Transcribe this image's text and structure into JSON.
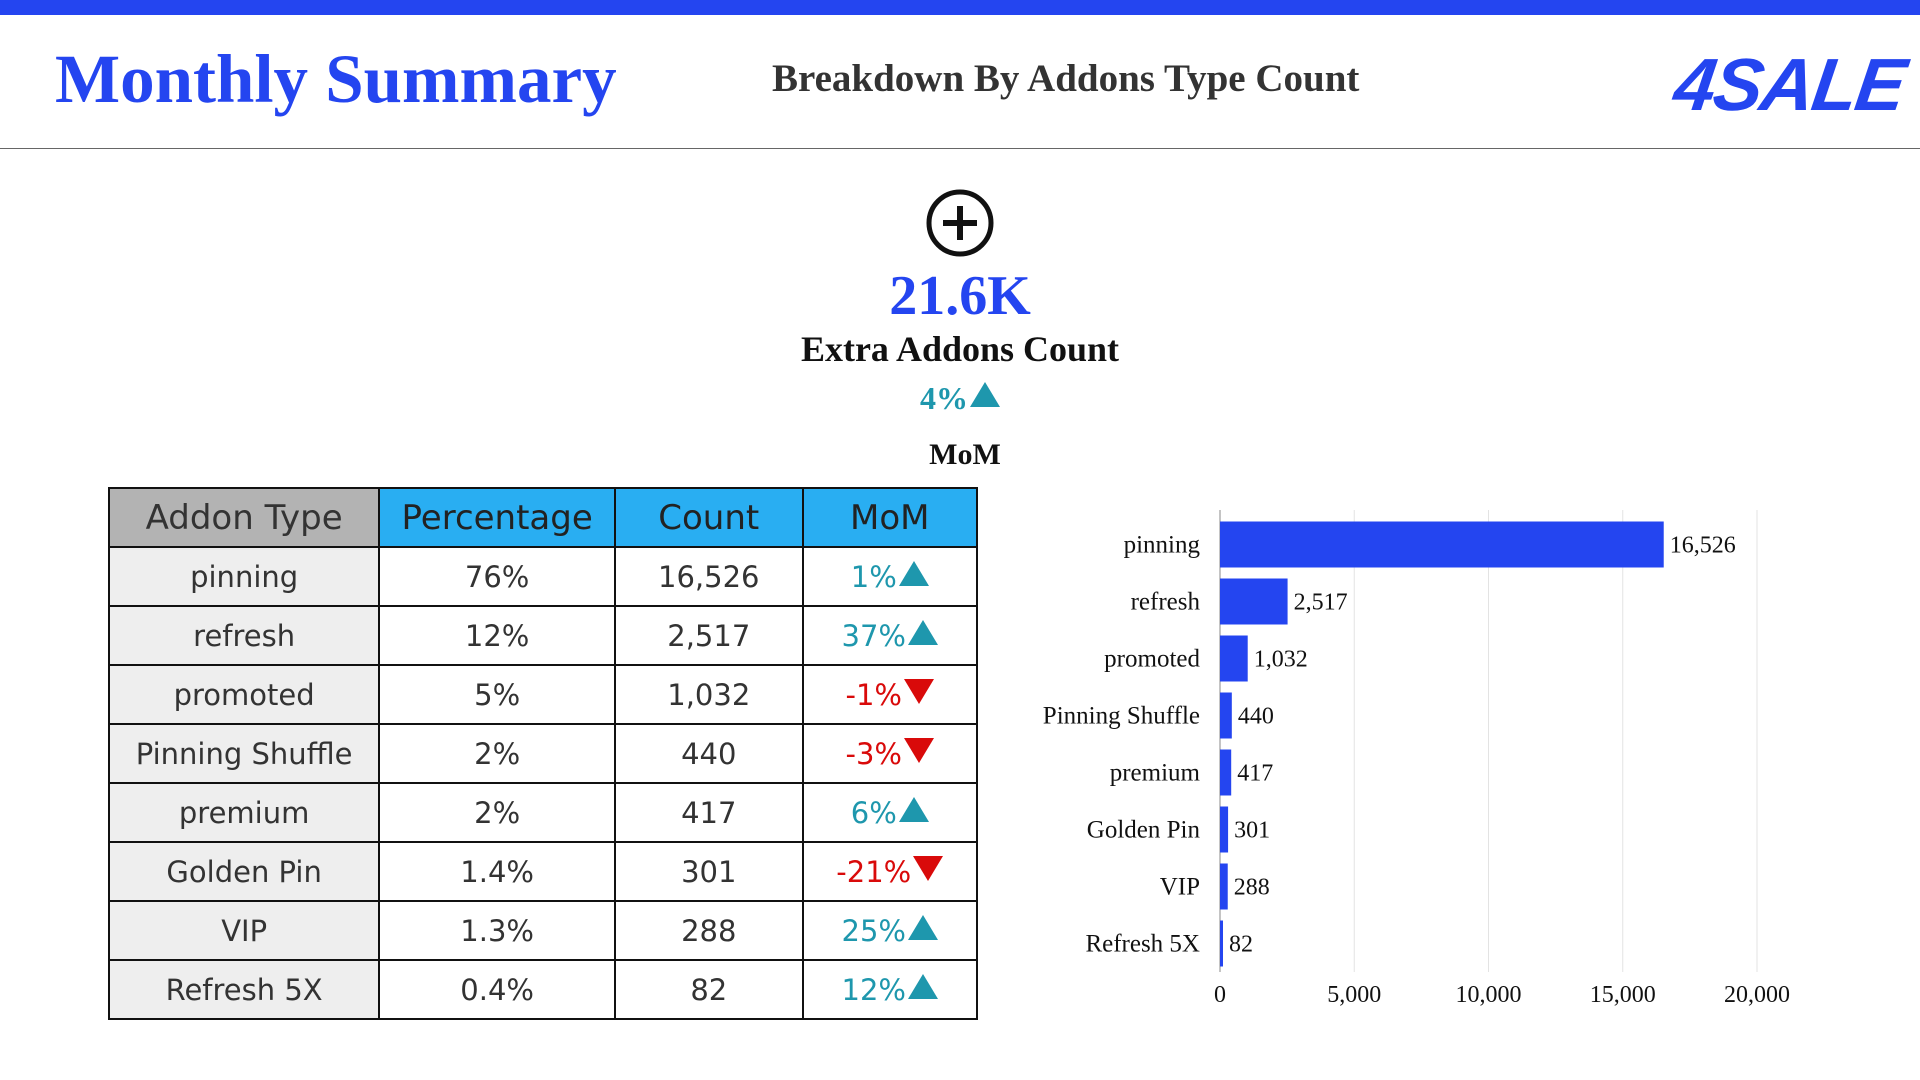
{
  "header": {
    "title": "Monthly Summary",
    "subtitle": "Breakdown By Addons Type Count",
    "logo_text": "4SALE"
  },
  "kpi": {
    "icon": "plus-circle-icon",
    "value": "21.6K",
    "label": "Extra Addons Count",
    "change": "4%",
    "change_direction": "up",
    "change_label": "MoM"
  },
  "table": {
    "headers": [
      "Addon Type",
      "Percentage",
      "Count",
      "MoM"
    ],
    "rows": [
      {
        "type": "pinning",
        "percentage": "76%",
        "count": "16,526",
        "mom": "1%",
        "direction": "up"
      },
      {
        "type": "refresh",
        "percentage": "12%",
        "count": "2,517",
        "mom": "37%",
        "direction": "up"
      },
      {
        "type": "promoted",
        "percentage": "5%",
        "count": "1,032",
        "mom": "-1%",
        "direction": "down"
      },
      {
        "type": "Pinning Shuffle",
        "percentage": "2%",
        "count": "440",
        "mom": "-3%",
        "direction": "down"
      },
      {
        "type": "premium",
        "percentage": "2%",
        "count": "417",
        "mom": "6%",
        "direction": "up"
      },
      {
        "type": "Golden Pin",
        "percentage": "1.4%",
        "count": "301",
        "mom": "-21%",
        "direction": "down"
      },
      {
        "type": "VIP",
        "percentage": "1.3%",
        "count": "288",
        "mom": "25%",
        "direction": "up"
      },
      {
        "type": "Refresh 5X",
        "percentage": "0.4%",
        "count": "82",
        "mom": "12%",
        "direction": "up"
      }
    ]
  },
  "colors": {
    "brand": "#2445f0",
    "up": "#1e97ad",
    "down": "#d90a0a",
    "header_gray": "#b3b3b3",
    "header_blue": "#29aef2"
  },
  "chart_data": {
    "type": "bar",
    "orientation": "horizontal",
    "categories": [
      "pinning",
      "refresh",
      "promoted",
      "Pinning Shuffle",
      "premium",
      "Golden Pin",
      "VIP",
      "Refresh 5X"
    ],
    "values": [
      16526,
      2517,
      1032,
      440,
      417,
      301,
      288,
      82
    ],
    "value_labels": [
      "16,526",
      "2,517",
      "1,032",
      "440",
      "417",
      "301",
      "288",
      "82"
    ],
    "xlim": [
      0,
      20000
    ],
    "xticks": [
      0,
      5000,
      10000,
      15000,
      20000
    ],
    "xtick_labels": [
      "0",
      "5,000",
      "10,000",
      "15,000",
      "20,000"
    ],
    "grid": "vertical",
    "bar_color": "#2445f0"
  }
}
